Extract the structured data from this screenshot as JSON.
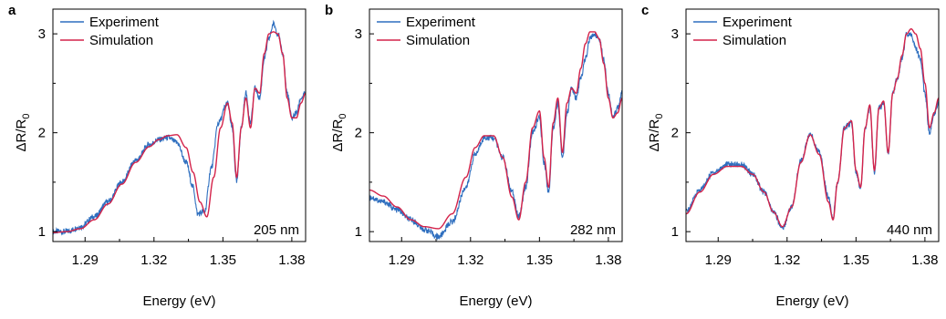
{
  "colors": {
    "experiment": "#2f6fbf",
    "simulation": "#d4234a",
    "axis": "#000000"
  },
  "chart_data": [
    {
      "type": "line",
      "panel_label": "a",
      "xlabel": "Energy (eV)",
      "ylabel": "ΔR/R0",
      "xlim": [
        1.276,
        1.386
      ],
      "ylim": [
        0.9,
        3.25
      ],
      "x_ticks": [
        1.29,
        1.32,
        1.35,
        1.38
      ],
      "x_tick_labels": [
        "1.29",
        "1.32",
        "1.35",
        "1.38"
      ],
      "y_ticks": [
        1,
        2,
        3
      ],
      "y_tick_labels": [
        "1",
        "2",
        "3"
      ],
      "legend": [
        "Experiment",
        "Simulation"
      ],
      "legend_position": "top-left",
      "annotation": "205 nm",
      "series": [
        {
          "name": "Experiment",
          "x": [
            1.276,
            1.282,
            1.288,
            1.294,
            1.3,
            1.306,
            1.312,
            1.318,
            1.322,
            1.326,
            1.33,
            1.334,
            1.337,
            1.339,
            1.342,
            1.345,
            1.348,
            1.352,
            1.354,
            1.356,
            1.358,
            1.36,
            1.362,
            1.364,
            1.366,
            1.368,
            1.37,
            1.372,
            1.374,
            1.376,
            1.378,
            1.38,
            1.382,
            1.384,
            1.386
          ],
          "y": [
            1.0,
            1.0,
            1.05,
            1.15,
            1.3,
            1.5,
            1.72,
            1.88,
            1.93,
            1.95,
            1.9,
            1.7,
            1.45,
            1.18,
            1.2,
            1.65,
            2.1,
            2.3,
            2.05,
            1.5,
            2.05,
            2.4,
            2.1,
            2.45,
            2.35,
            2.75,
            2.95,
            3.1,
            3.0,
            2.8,
            2.4,
            2.15,
            2.2,
            2.35,
            2.4
          ]
        },
        {
          "name": "Simulation",
          "x": [
            1.276,
            1.282,
            1.288,
            1.294,
            1.3,
            1.306,
            1.312,
            1.318,
            1.322,
            1.326,
            1.33,
            1.334,
            1.337,
            1.34,
            1.343,
            1.346,
            1.349,
            1.352,
            1.354,
            1.356,
            1.358,
            1.36,
            1.362,
            1.364,
            1.366,
            1.368,
            1.37,
            1.372,
            1.374,
            1.376,
            1.378,
            1.38,
            1.382,
            1.384,
            1.386
          ],
          "y": [
            0.99,
            1.0,
            1.03,
            1.12,
            1.28,
            1.48,
            1.7,
            1.86,
            1.93,
            1.97,
            1.98,
            1.85,
            1.6,
            1.3,
            1.15,
            1.55,
            2.05,
            2.3,
            2.1,
            1.55,
            2.05,
            2.35,
            2.05,
            2.45,
            2.4,
            2.8,
            3.0,
            3.02,
            3.0,
            2.8,
            2.35,
            2.15,
            2.15,
            2.3,
            2.4
          ]
        }
      ]
    },
    {
      "type": "line",
      "panel_label": "b",
      "xlabel": "Energy (eV)",
      "ylabel": "ΔR/R0",
      "xlim": [
        1.276,
        1.386
      ],
      "ylim": [
        0.9,
        3.25
      ],
      "x_ticks": [
        1.29,
        1.32,
        1.35,
        1.38
      ],
      "x_tick_labels": [
        "1.29",
        "1.32",
        "1.35",
        "1.38"
      ],
      "y_ticks": [
        1,
        2,
        3
      ],
      "y_tick_labels": [
        "1",
        "2",
        "3"
      ],
      "legend": [
        "Experiment",
        "Simulation"
      ],
      "legend_position": "top-left",
      "annotation": "282 nm",
      "series": [
        {
          "name": "Experiment",
          "x": [
            1.276,
            1.282,
            1.288,
            1.294,
            1.3,
            1.306,
            1.312,
            1.318,
            1.322,
            1.326,
            1.33,
            1.334,
            1.338,
            1.341,
            1.344,
            1.347,
            1.35,
            1.352,
            1.354,
            1.356,
            1.358,
            1.36,
            1.362,
            1.364,
            1.366,
            1.368,
            1.37,
            1.372,
            1.374,
            1.376,
            1.378,
            1.38,
            1.382,
            1.384,
            1.386
          ],
          "y": [
            1.35,
            1.3,
            1.22,
            1.12,
            1.02,
            0.95,
            1.1,
            1.45,
            1.78,
            1.95,
            1.95,
            1.75,
            1.4,
            1.15,
            1.45,
            2.0,
            2.15,
            1.7,
            1.4,
            2.05,
            2.3,
            1.75,
            2.2,
            2.45,
            2.35,
            2.55,
            2.75,
            2.95,
            3.0,
            2.95,
            2.75,
            2.4,
            2.15,
            2.25,
            2.4
          ]
        },
        {
          "name": "Simulation",
          "x": [
            1.276,
            1.282,
            1.288,
            1.294,
            1.3,
            1.306,
            1.312,
            1.318,
            1.322,
            1.326,
            1.33,
            1.334,
            1.338,
            1.341,
            1.344,
            1.347,
            1.35,
            1.352,
            1.354,
            1.356,
            1.358,
            1.36,
            1.362,
            1.364,
            1.366,
            1.368,
            1.37,
            1.372,
            1.374,
            1.376,
            1.378,
            1.38,
            1.382,
            1.384,
            1.386
          ],
          "y": [
            1.42,
            1.36,
            1.25,
            1.12,
            1.05,
            1.03,
            1.18,
            1.55,
            1.85,
            1.97,
            1.97,
            1.75,
            1.35,
            1.12,
            1.5,
            2.05,
            2.22,
            1.75,
            1.45,
            2.1,
            2.35,
            1.8,
            2.3,
            2.45,
            2.4,
            2.65,
            2.9,
            3.02,
            3.02,
            2.95,
            2.7,
            2.35,
            2.15,
            2.2,
            2.35
          ]
        }
      ]
    },
    {
      "type": "line",
      "panel_label": "c",
      "xlabel": "Energy (eV)",
      "ylabel": "ΔR/R0",
      "xlim": [
        1.276,
        1.386
      ],
      "ylim": [
        0.9,
        3.25
      ],
      "x_ticks": [
        1.29,
        1.32,
        1.35,
        1.38
      ],
      "x_tick_labels": [
        "1.29",
        "1.32",
        "1.35",
        "1.38"
      ],
      "y_ticks": [
        1,
        2,
        3
      ],
      "y_tick_labels": [
        "1",
        "2",
        "3"
      ],
      "legend": [
        "Experiment",
        "Simulation"
      ],
      "legend_position": "top-left",
      "annotation": "440 nm",
      "series": [
        {
          "name": "Experiment",
          "x": [
            1.276,
            1.282,
            1.288,
            1.294,
            1.3,
            1.305,
            1.31,
            1.314,
            1.318,
            1.322,
            1.326,
            1.33,
            1.334,
            1.338,
            1.34,
            1.342,
            1.345,
            1.348,
            1.35,
            1.352,
            1.354,
            1.356,
            1.358,
            1.36,
            1.362,
            1.364,
            1.366,
            1.368,
            1.37,
            1.372,
            1.374,
            1.376,
            1.378,
            1.38,
            1.382,
            1.384,
            1.386
          ],
          "y": [
            1.2,
            1.42,
            1.6,
            1.68,
            1.68,
            1.58,
            1.4,
            1.2,
            1.04,
            1.25,
            1.72,
            1.98,
            1.8,
            1.35,
            1.15,
            1.5,
            2.05,
            2.1,
            1.6,
            1.45,
            2.05,
            2.25,
            1.6,
            2.25,
            2.3,
            1.8,
            2.4,
            2.55,
            2.75,
            3.0,
            3.0,
            2.85,
            2.75,
            2.4,
            2.0,
            2.2,
            2.3
          ]
        },
        {
          "name": "Simulation",
          "x": [
            1.276,
            1.282,
            1.288,
            1.294,
            1.3,
            1.305,
            1.31,
            1.314,
            1.318,
            1.322,
            1.326,
            1.33,
            1.334,
            1.338,
            1.34,
            1.342,
            1.345,
            1.348,
            1.35,
            1.352,
            1.354,
            1.356,
            1.358,
            1.36,
            1.362,
            1.364,
            1.366,
            1.368,
            1.37,
            1.372,
            1.374,
            1.376,
            1.378,
            1.38,
            1.382,
            1.384,
            1.386
          ],
          "y": [
            1.18,
            1.4,
            1.58,
            1.66,
            1.66,
            1.58,
            1.4,
            1.2,
            1.05,
            1.25,
            1.7,
            1.98,
            1.78,
            1.3,
            1.12,
            1.5,
            2.05,
            2.12,
            1.62,
            1.45,
            2.05,
            2.28,
            1.62,
            2.25,
            2.32,
            1.8,
            2.4,
            2.55,
            2.78,
            3.0,
            3.05,
            3.0,
            2.85,
            2.5,
            2.05,
            2.2,
            2.35
          ]
        }
      ]
    }
  ]
}
